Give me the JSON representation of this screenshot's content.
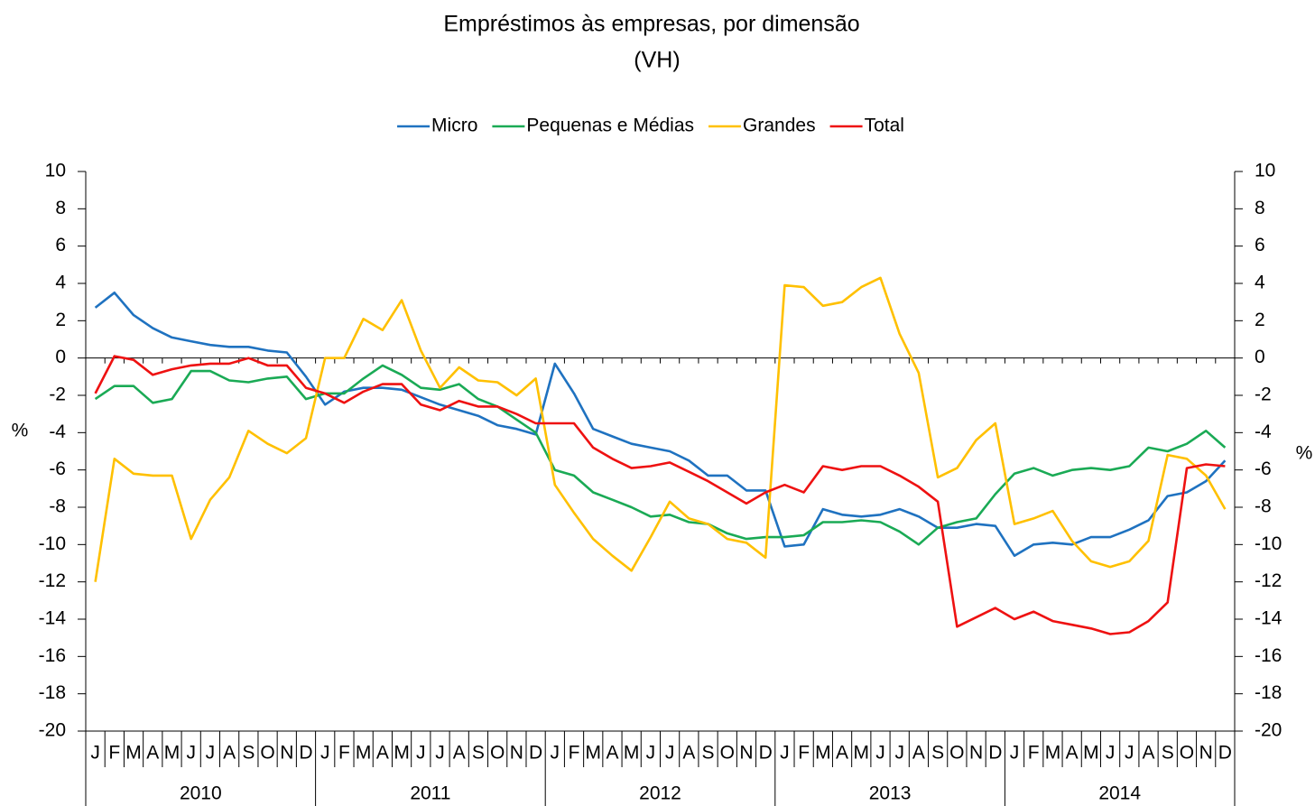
{
  "chart_data": {
    "type": "line",
    "title": "Empréstimos às empresas, por dimensão",
    "subtitle": "(VH)",
    "ylabel": "%",
    "y2label": "%",
    "categories": [
      "J",
      "F",
      "M",
      "A",
      "M",
      "J",
      "J",
      "A",
      "S",
      "O",
      "N",
      "D",
      "J",
      "F",
      "M",
      "A",
      "M",
      "J",
      "J",
      "A",
      "S",
      "O",
      "N",
      "D",
      "J",
      "F",
      "M",
      "A",
      "M",
      "J",
      "J",
      "A",
      "S",
      "O",
      "N",
      "D",
      "J",
      "F",
      "M",
      "A",
      "M",
      "J",
      "J",
      "A",
      "S",
      "O",
      "N",
      "D",
      "J",
      "F",
      "M",
      "A",
      "M",
      "J",
      "J",
      "A",
      "S",
      "O",
      "N",
      "D"
    ],
    "years": [
      "2010",
      "2011",
      "2012",
      "2013",
      "2014"
    ],
    "ylim": [
      -20,
      10
    ],
    "yticks": [
      -20,
      -18,
      -16,
      -14,
      -12,
      -10,
      -8,
      -6,
      -4,
      -2,
      0,
      2,
      4,
      6,
      8,
      10
    ],
    "y2lim": [
      -20,
      10
    ],
    "y2ticks": [
      -20,
      -18,
      -16,
      -14,
      -12,
      -10,
      -8,
      -6,
      -4,
      -2,
      0,
      2,
      4,
      6,
      8,
      10
    ],
    "legend": "top",
    "series": [
      {
        "name": "Micro",
        "color": "#1f72c0",
        "values": [
          2.7,
          3.5,
          2.3,
          1.6,
          1.1,
          0.9,
          0.7,
          0.6,
          0.6,
          0.4,
          0.3,
          -1.0,
          -2.5,
          -1.8,
          -1.6,
          -1.6,
          -1.7,
          -2.1,
          -2.5,
          -2.8,
          -3.1,
          -3.6,
          -3.8,
          -4.1,
          -0.3,
          -1.9,
          -3.8,
          -4.2,
          -4.6,
          -4.8,
          -5.0,
          -5.5,
          -6.3,
          -6.3,
          -7.1,
          -7.1,
          -10.1,
          -10.0,
          -8.1,
          -8.4,
          -8.5,
          -8.4,
          -8.1,
          -8.5,
          -9.1,
          -9.1,
          -8.9,
          -9.0,
          -10.6,
          -10.0,
          -9.9,
          -10.0,
          -9.6,
          -9.6,
          -9.2,
          -8.7,
          -7.4,
          -7.2,
          -6.6,
          -5.5
        ]
      },
      {
        "name": "Pequenas e Médias",
        "color": "#1aaa55",
        "values": [
          -2.2,
          -1.5,
          -1.5,
          -2.4,
          -2.2,
          -0.7,
          -0.7,
          -1.2,
          -1.3,
          -1.1,
          -1.0,
          -2.2,
          -1.9,
          -1.9,
          -1.1,
          -0.4,
          -0.9,
          -1.6,
          -1.7,
          -1.4,
          -2.2,
          -2.6,
          -3.3,
          -4.0,
          -6.0,
          -6.3,
          -7.2,
          -7.6,
          -8.0,
          -8.5,
          -8.4,
          -8.8,
          -8.9,
          -9.4,
          -9.7,
          -9.6,
          -9.6,
          -9.5,
          -8.8,
          -8.8,
          -8.7,
          -8.8,
          -9.3,
          -10.0,
          -9.1,
          -8.8,
          -8.6,
          -7.3,
          -6.2,
          -5.9,
          -6.3,
          -6.0,
          -5.9,
          -6.0,
          -5.8,
          -4.8,
          -5.0,
          -4.6,
          -3.9,
          -4.8
        ]
      },
      {
        "name": "Grandes",
        "color": "#ffc000",
        "values": [
          -12.0,
          -5.4,
          -6.2,
          -6.3,
          -6.3,
          -9.7,
          -7.6,
          -6.4,
          -3.9,
          -4.6,
          -5.1,
          -4.3,
          0.0,
          0.0,
          2.1,
          1.5,
          3.1,
          0.4,
          -1.6,
          -0.5,
          -1.2,
          -1.3,
          -2.0,
          -1.1,
          -6.8,
          -8.3,
          -9.7,
          -10.6,
          -11.4,
          -9.6,
          -7.7,
          -8.6,
          -8.9,
          -9.7,
          -9.9,
          -10.7,
          3.9,
          3.8,
          2.8,
          3.0,
          3.8,
          4.3,
          1.3,
          -0.8,
          -6.4,
          -5.9,
          -4.4,
          -3.5,
          -8.9,
          -8.6,
          -8.2,
          -9.8,
          -10.9,
          -11.2,
          -10.9,
          -9.8,
          -5.2,
          -5.4,
          -6.3,
          -8.1
        ]
      },
      {
        "name": "Total",
        "color": "#ee1111",
        "values": [
          -1.9,
          0.1,
          -0.1,
          -0.9,
          -0.6,
          -0.4,
          -0.3,
          -0.3,
          0.0,
          -0.4,
          -0.4,
          -1.6,
          -1.9,
          -2.4,
          -1.8,
          -1.4,
          -1.4,
          -2.5,
          -2.8,
          -2.3,
          -2.6,
          -2.6,
          -3.0,
          -3.5,
          -3.5,
          -3.5,
          -4.8,
          -5.4,
          -5.9,
          -5.8,
          -5.6,
          -6.1,
          -6.6,
          -7.2,
          -7.8,
          -7.2,
          -6.8,
          -7.2,
          -5.8,
          -6.0,
          -5.8,
          -5.8,
          -6.3,
          -6.9,
          -7.7,
          -14.4,
          -13.9,
          -13.4,
          -14.0,
          -13.6,
          -14.1,
          -14.3,
          -14.5,
          -14.8,
          -14.7,
          -14.1,
          -13.1,
          -5.9,
          -5.7,
          -5.8
        ]
      }
    ]
  }
}
